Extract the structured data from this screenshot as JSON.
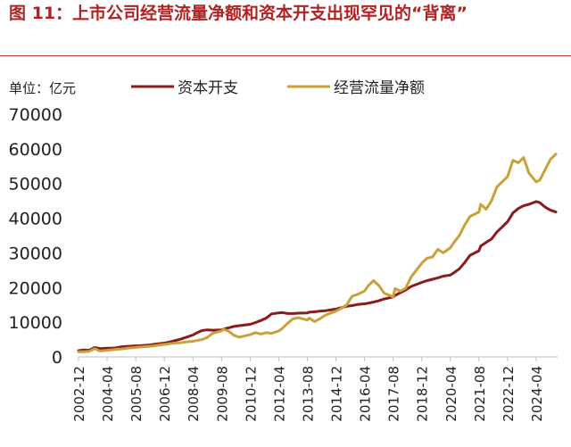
{
  "title": "图 11：上市公司经营流量净额和资本开支出现罕见的“背离”",
  "unit_label": "单位：亿元",
  "colors": {
    "title": "#b22222",
    "capex": "#8b1a1a",
    "ocf": "#c9a13a",
    "axis": "#bfbfbf",
    "text": "#222222"
  },
  "chart_data": {
    "type": "line",
    "title": "",
    "xlabel": "",
    "ylabel": "",
    "ylim": [
      0,
      70000
    ],
    "yticks": [
      0,
      10000,
      20000,
      30000,
      40000,
      50000,
      60000,
      70000
    ],
    "xticks": [
      "2002-12",
      "2004-04",
      "2005-08",
      "2006-12",
      "2008-04",
      "2009-08",
      "2010-12",
      "2012-04",
      "2013-08",
      "2014-12",
      "2016-04",
      "2017-08",
      "2018-12",
      "2020-04",
      "2021-08",
      "2022-12",
      "2024-04"
    ],
    "x_step": "quarterly",
    "grid": false,
    "legend_position": "top",
    "series": [
      {
        "name": "资本开支",
        "color_key": "capex",
        "points": [
          [
            "2002-12",
            1800
          ],
          [
            "2003-03",
            2000
          ],
          [
            "2003-06",
            1900
          ],
          [
            "2003-09",
            2700
          ],
          [
            "2003-12",
            2400
          ],
          [
            "2004-04",
            2500
          ],
          [
            "2004-06",
            2500
          ],
          [
            "2004-09",
            2600
          ],
          [
            "2004-12",
            2900
          ],
          [
            "2005-03",
            3000
          ],
          [
            "2005-08",
            3200
          ],
          [
            "2005-09",
            3200
          ],
          [
            "2005-12",
            3300
          ],
          [
            "2006-03",
            3400
          ],
          [
            "2006-06",
            3600
          ],
          [
            "2006-12",
            4000
          ],
          [
            "2007-03",
            4300
          ],
          [
            "2007-06",
            4700
          ],
          [
            "2007-09",
            5100
          ],
          [
            "2007-12",
            5600
          ],
          [
            "2008-04",
            6300
          ],
          [
            "2008-06",
            6900
          ],
          [
            "2008-09",
            7600
          ],
          [
            "2008-12",
            7800
          ],
          [
            "2009-03",
            7700
          ],
          [
            "2009-08",
            7800
          ],
          [
            "2009-09",
            8000
          ],
          [
            "2009-12",
            8400
          ],
          [
            "2010-03",
            8800
          ],
          [
            "2010-06",
            9000
          ],
          [
            "2010-12",
            9400
          ],
          [
            "2011-03",
            9900
          ],
          [
            "2011-06",
            10500
          ],
          [
            "2011-09",
            11200
          ],
          [
            "2011-12",
            12400
          ],
          [
            "2012-04",
            12700
          ],
          [
            "2012-06",
            12800
          ],
          [
            "2012-09",
            12500
          ],
          [
            "2012-12",
            12500
          ],
          [
            "2013-03",
            12600
          ],
          [
            "2013-08",
            12700
          ],
          [
            "2013-09",
            12900
          ],
          [
            "2013-12",
            13000
          ],
          [
            "2014-03",
            13200
          ],
          [
            "2014-06",
            13300
          ],
          [
            "2014-12",
            13800
          ],
          [
            "2015-03",
            14200
          ],
          [
            "2015-06",
            14600
          ],
          [
            "2015-09",
            14800
          ],
          [
            "2015-12",
            15100
          ],
          [
            "2016-04",
            15300
          ],
          [
            "2016-06",
            15500
          ],
          [
            "2016-09",
            15800
          ],
          [
            "2016-12",
            16200
          ],
          [
            "2017-03",
            16700
          ],
          [
            "2017-08",
            17300
          ],
          [
            "2017-09",
            17700
          ],
          [
            "2017-12",
            18500
          ],
          [
            "2018-03",
            19300
          ],
          [
            "2018-06",
            20300
          ],
          [
            "2018-12",
            21500
          ],
          [
            "2019-03",
            22000
          ],
          [
            "2019-06",
            22400
          ],
          [
            "2019-09",
            22800
          ],
          [
            "2019-12",
            23300
          ],
          [
            "2020-04",
            23600
          ],
          [
            "2020-06",
            24300
          ],
          [
            "2020-09",
            25400
          ],
          [
            "2020-12",
            27200
          ],
          [
            "2021-03",
            29300
          ],
          [
            "2021-08",
            30600
          ],
          [
            "2021-09",
            32000
          ],
          [
            "2021-12",
            33000
          ],
          [
            "2022-03",
            34000
          ],
          [
            "2022-06",
            36000
          ],
          [
            "2022-12",
            39000
          ],
          [
            "2023-03",
            41500
          ],
          [
            "2023-06",
            42800
          ],
          [
            "2023-09",
            43600
          ],
          [
            "2023-12",
            44000
          ],
          [
            "2024-04",
            44800
          ],
          [
            "2024-06",
            44500
          ],
          [
            "2024-09",
            43200
          ],
          [
            "2024-12",
            42300
          ],
          [
            "2025-03",
            41800
          ]
        ]
      },
      {
        "name": "经营流量净额",
        "color_key": "ocf",
        "points": [
          [
            "2002-12",
            1500
          ],
          [
            "2003-03",
            1500
          ],
          [
            "2003-06",
            1600
          ],
          [
            "2003-09",
            2400
          ],
          [
            "2003-12",
            1700
          ],
          [
            "2004-04",
            1900
          ],
          [
            "2004-06",
            2000
          ],
          [
            "2004-09",
            2200
          ],
          [
            "2004-12",
            2300
          ],
          [
            "2005-03",
            2500
          ],
          [
            "2005-08",
            2700
          ],
          [
            "2005-09",
            2800
          ],
          [
            "2005-12",
            2900
          ],
          [
            "2006-03",
            3000
          ],
          [
            "2006-06",
            3200
          ],
          [
            "2006-12",
            3600
          ],
          [
            "2007-03",
            3800
          ],
          [
            "2007-06",
            4000
          ],
          [
            "2007-09",
            4100
          ],
          [
            "2007-12",
            4300
          ],
          [
            "2008-04",
            4500
          ],
          [
            "2008-06",
            4700
          ],
          [
            "2008-09",
            5000
          ],
          [
            "2008-12",
            5600
          ],
          [
            "2009-03",
            6800
          ],
          [
            "2009-08",
            7500
          ],
          [
            "2009-09",
            8000
          ],
          [
            "2009-12",
            7400
          ],
          [
            "2010-03",
            6200
          ],
          [
            "2010-06",
            5700
          ],
          [
            "2010-12",
            6400
          ],
          [
            "2011-03",
            7000
          ],
          [
            "2011-06",
            6600
          ],
          [
            "2011-09",
            7000
          ],
          [
            "2011-12",
            6800
          ],
          [
            "2012-04",
            7500
          ],
          [
            "2012-06",
            8200
          ],
          [
            "2012-09",
            9700
          ],
          [
            "2012-12",
            11000
          ],
          [
            "2013-03",
            11300
          ],
          [
            "2013-08",
            10600
          ],
          [
            "2013-09",
            11200
          ],
          [
            "2013-12",
            10200
          ],
          [
            "2014-03",
            11000
          ],
          [
            "2014-06",
            12000
          ],
          [
            "2014-12",
            13200
          ],
          [
            "2015-03",
            14000
          ],
          [
            "2015-06",
            15000
          ],
          [
            "2015-09",
            17500
          ],
          [
            "2015-12",
            18000
          ],
          [
            "2016-04",
            19000
          ],
          [
            "2016-06",
            20500
          ],
          [
            "2016-09",
            22000
          ],
          [
            "2016-12",
            20600
          ],
          [
            "2017-03",
            18400
          ],
          [
            "2017-08",
            17300
          ],
          [
            "2017-09",
            19700
          ],
          [
            "2017-12",
            19000
          ],
          [
            "2018-03",
            19800
          ],
          [
            "2018-06",
            23000
          ],
          [
            "2018-12",
            27000
          ],
          [
            "2019-03",
            28500
          ],
          [
            "2019-06",
            28800
          ],
          [
            "2019-09",
            31000
          ],
          [
            "2019-12",
            30000
          ],
          [
            "2020-04",
            31500
          ],
          [
            "2020-06",
            33000
          ],
          [
            "2020-09",
            35000
          ],
          [
            "2020-12",
            38000
          ],
          [
            "2021-03",
            40500
          ],
          [
            "2021-08",
            41800
          ],
          [
            "2021-09",
            44000
          ],
          [
            "2021-12",
            42600
          ],
          [
            "2022-03",
            45000
          ],
          [
            "2022-06",
            49000
          ],
          [
            "2022-12",
            52000
          ],
          [
            "2023-03",
            56700
          ],
          [
            "2023-06",
            56000
          ],
          [
            "2023-09",
            57500
          ],
          [
            "2023-12",
            53000
          ],
          [
            "2024-04",
            50500
          ],
          [
            "2024-06",
            51000
          ],
          [
            "2024-09",
            54000
          ],
          [
            "2024-12",
            57000
          ],
          [
            "2025-03",
            58500
          ]
        ]
      }
    ]
  }
}
